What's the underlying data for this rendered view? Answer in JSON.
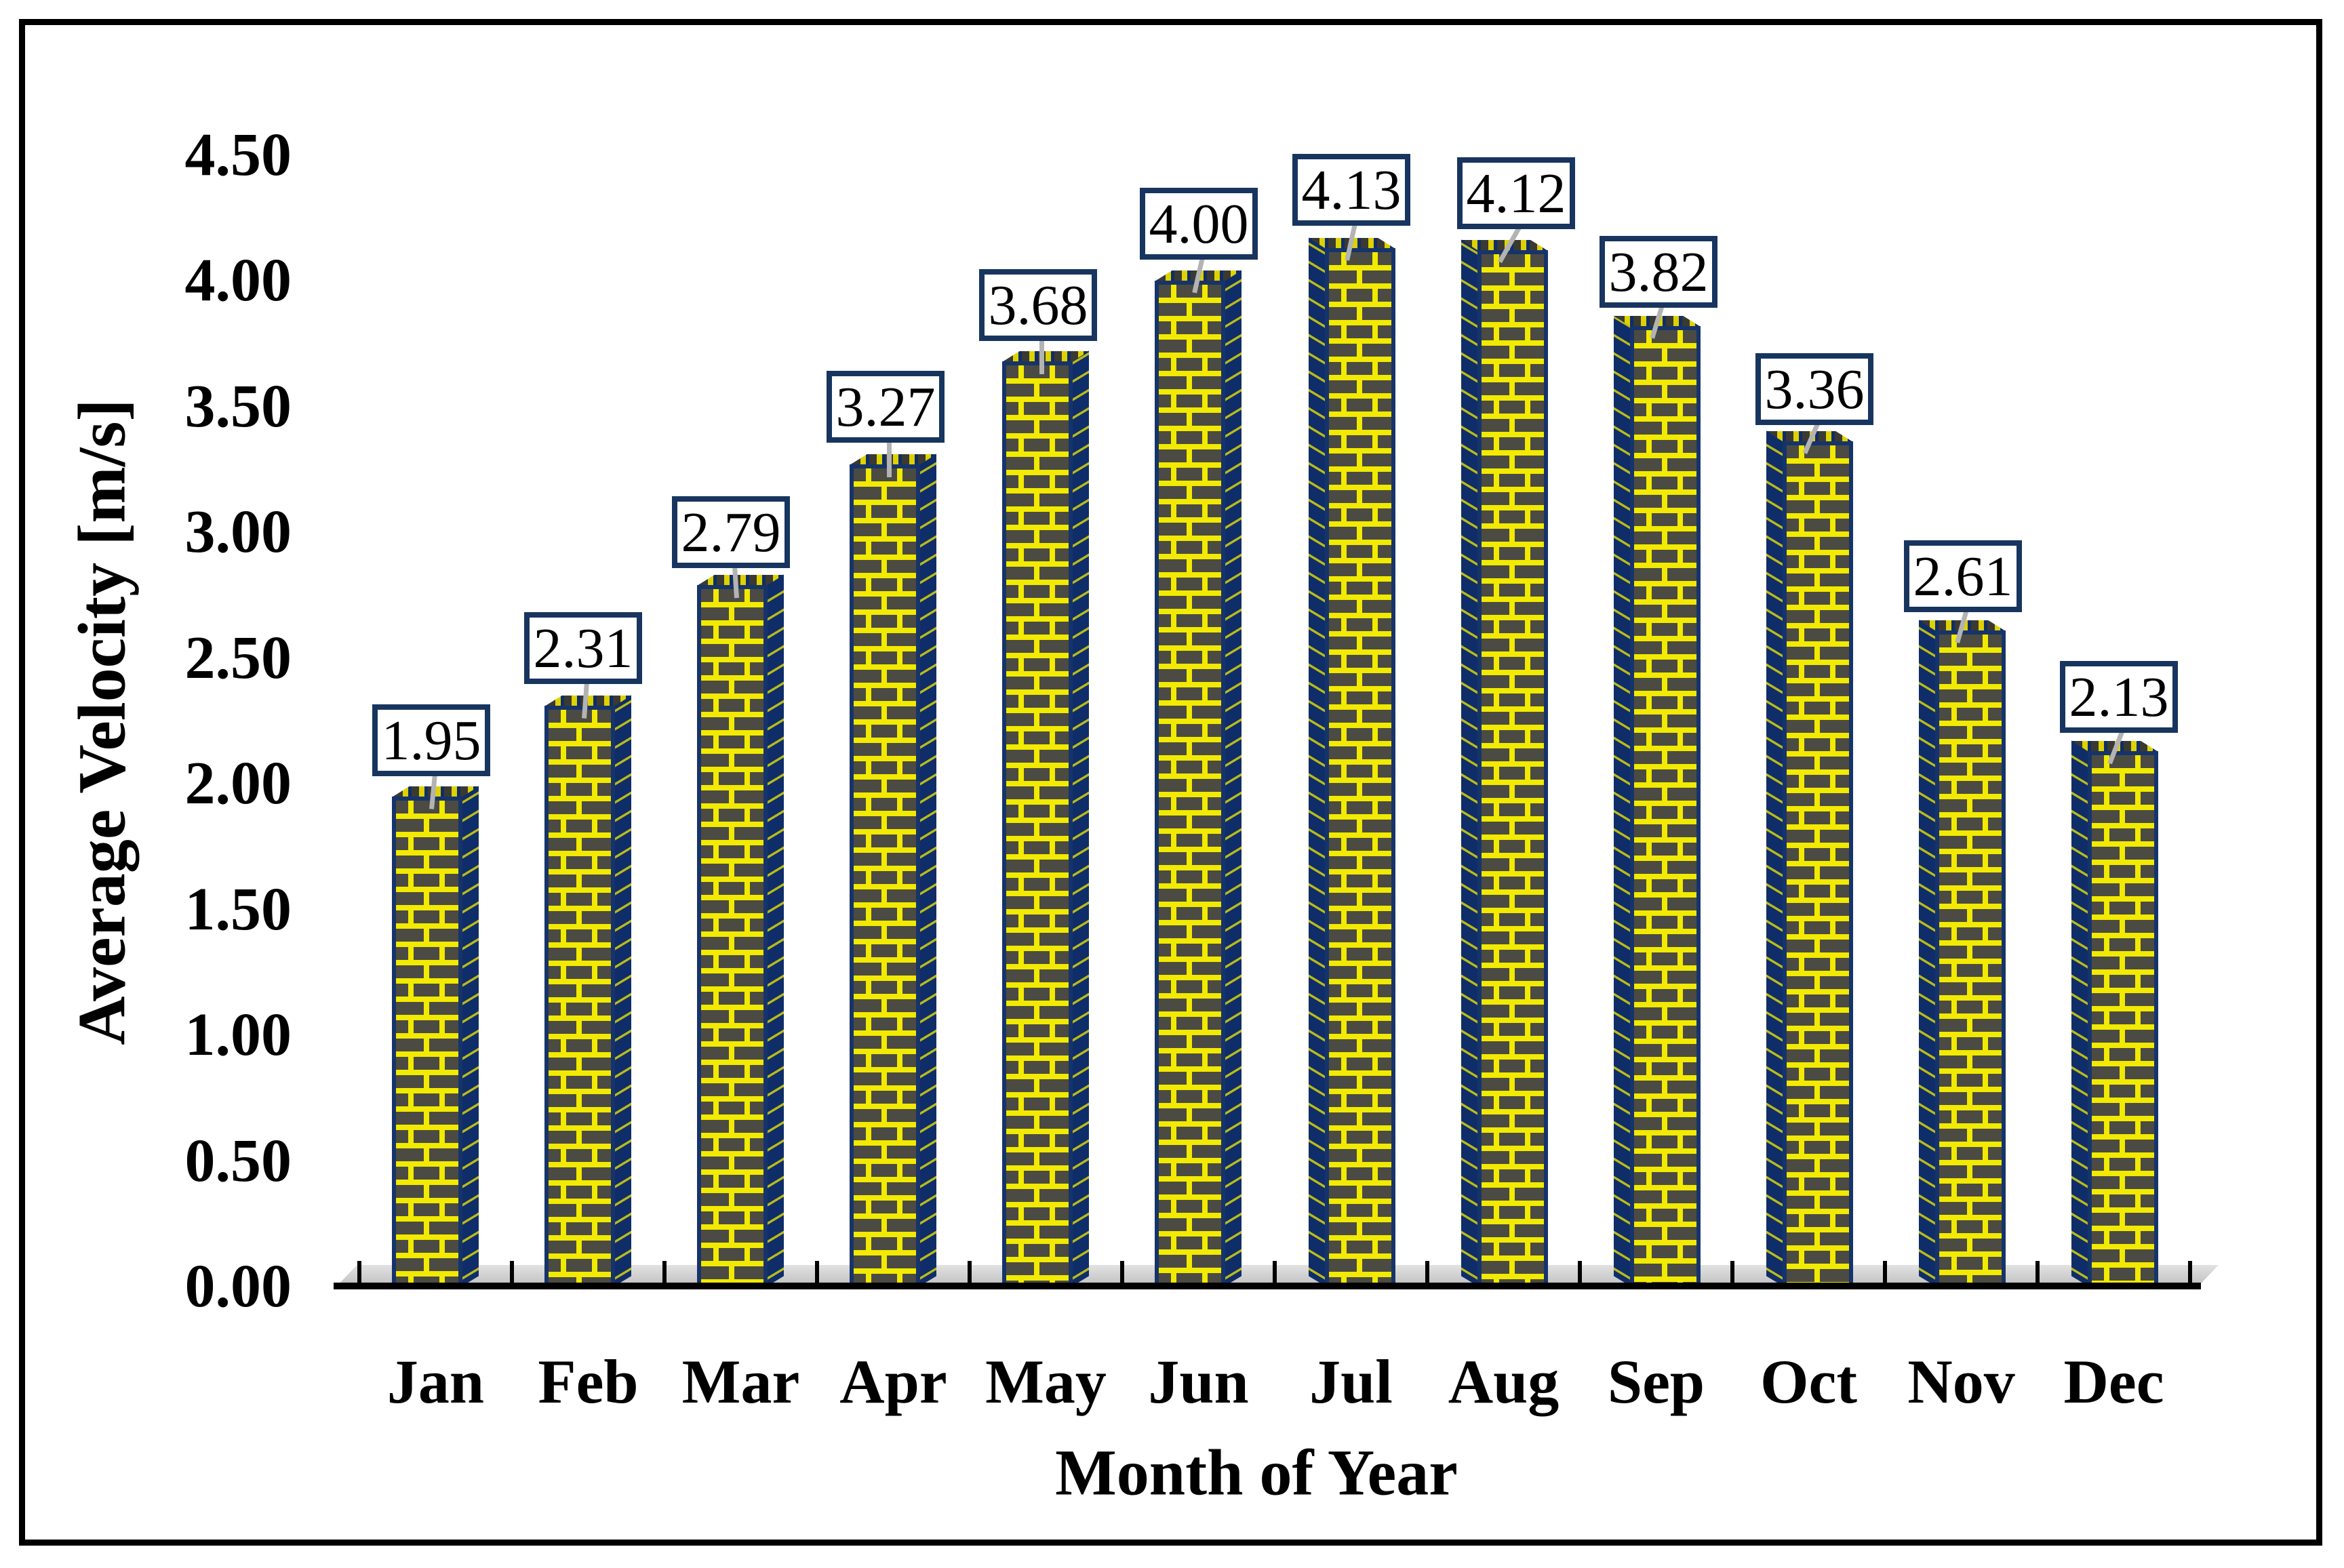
{
  "chart_data": {
    "type": "bar",
    "title": "",
    "categories": [
      "Jan",
      "Feb",
      "Mar",
      "Apr",
      "May",
      "Jun",
      "Jul",
      "Aug",
      "Sep",
      "Oct",
      "Nov",
      "Dec"
    ],
    "values": [
      1.95,
      2.31,
      2.79,
      3.27,
      3.68,
      4.0,
      4.13,
      4.12,
      3.82,
      3.36,
      2.61,
      2.13
    ],
    "data_labels": [
      "1.95",
      "2.31",
      "2.79",
      "3.27",
      "3.68",
      "4.00",
      "4.13",
      "4.12",
      "3.82",
      "3.36",
      "2.61",
      "2.13"
    ],
    "xlabel": "Month of Year",
    "ylabel": "Average Velocity  [m/s]",
    "y_ticks": [
      "4.50",
      "4.00",
      "3.50",
      "3.00",
      "2.50",
      "2.00",
      "1.50",
      "1.00",
      "0.50",
      "0.00"
    ],
    "ylim": [
      0,
      4.5
    ],
    "y_tick_step": 0.5,
    "grid": false,
    "legend": "none",
    "bar_style": "3D column with yellow brick pattern on dark gray, navy edges, boxed data labels"
  },
  "style": {
    "background": "#ffffff",
    "frame_border": "#000000",
    "brick_dark": "#4b4b43",
    "brick_yellow": "#f2ea00",
    "bar_edge_navy": "#16346a",
    "bar_side_navy": "#0f2d69",
    "box_border_navy": "#17355f",
    "leader_gray": "#b3b3b3",
    "floor_gray": "#cfcfcf",
    "text_color": "#000000"
  }
}
